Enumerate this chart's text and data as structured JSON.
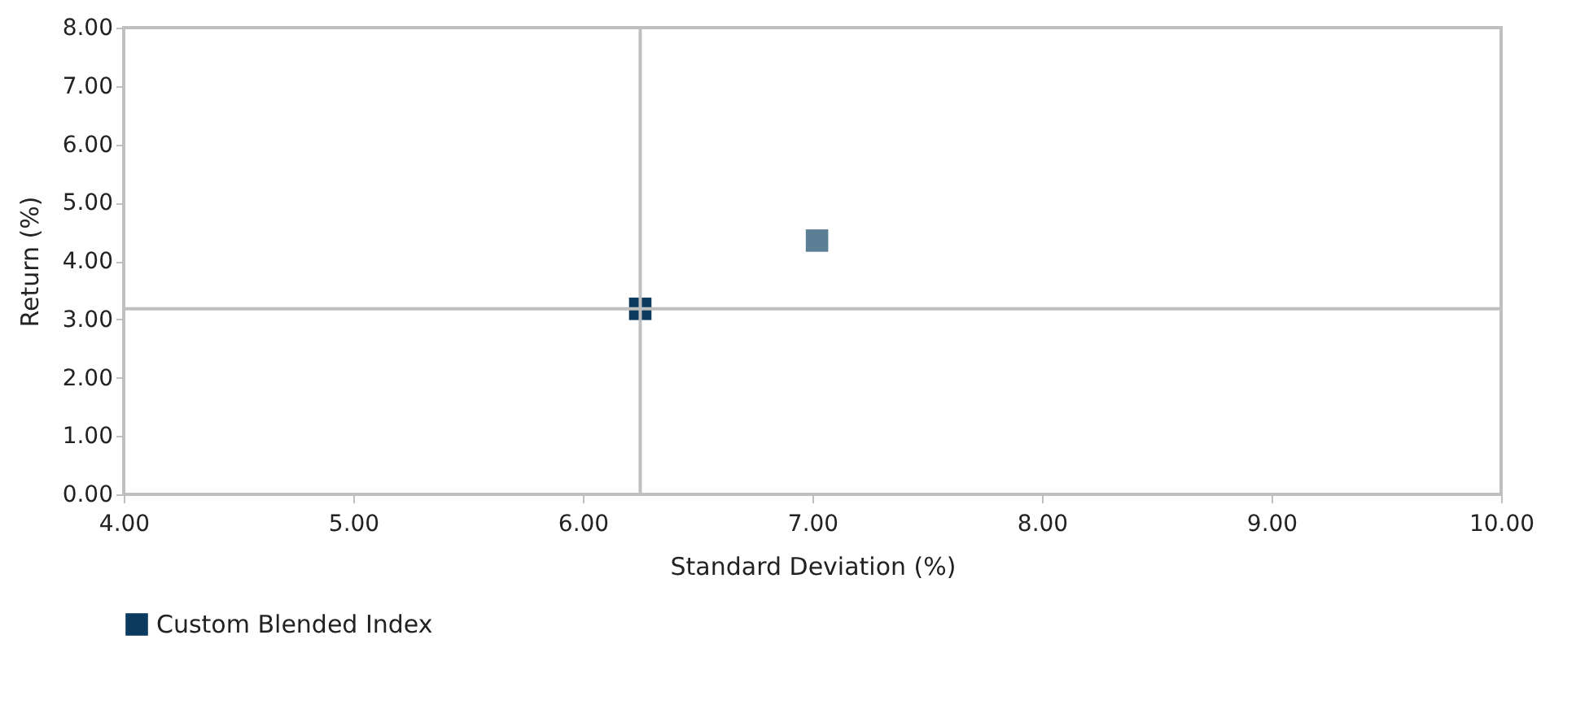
{
  "chart_data": {
    "type": "scatter",
    "xlabel": "Standard Deviation (%)",
    "ylabel": "Return (%)",
    "series": [
      {
        "color": "#5b7f95",
        "x": [
          7.02
        ],
        "values": [
          4.35
        ]
      },
      {
        "name": "Custom Blended Index",
        "color": "#0b3a5e",
        "x": [
          6.25
        ],
        "values": [
          3.18
        ]
      }
    ],
    "xlim": [
      4,
      10
    ],
    "xticks": [
      {
        "value": 4,
        "label": "4.00"
      },
      {
        "value": 5,
        "label": "5.00"
      },
      {
        "value": 6,
        "label": "6.00"
      },
      {
        "value": 7,
        "label": "7.00"
      },
      {
        "value": 8,
        "label": "8.00"
      },
      {
        "value": 9,
        "label": "9.00"
      },
      {
        "value": 10,
        "label": "10.00"
      }
    ],
    "ylim": [
      0,
      8
    ],
    "yticks": [
      {
        "value": 0,
        "label": "0.00"
      },
      {
        "value": 1,
        "label": "1.00"
      },
      {
        "value": 2,
        "label": "2.00"
      },
      {
        "value": 3,
        "label": "3.00"
      },
      {
        "value": 4,
        "label": "4.00"
      },
      {
        "value": 5,
        "label": "5.00"
      },
      {
        "value": 6,
        "label": "6.00"
      },
      {
        "value": 7,
        "label": "7.00"
      },
      {
        "value": 8,
        "label": "8.00"
      }
    ],
    "ref_lines": [
      {
        "axis": "x",
        "value": 6.25,
        "color": "#bfbfbf"
      },
      {
        "axis": "y",
        "value": 3.18,
        "color": "#bfbfbf"
      }
    ],
    "grid": false,
    "legend": "bottom",
    "marker": "square"
  }
}
